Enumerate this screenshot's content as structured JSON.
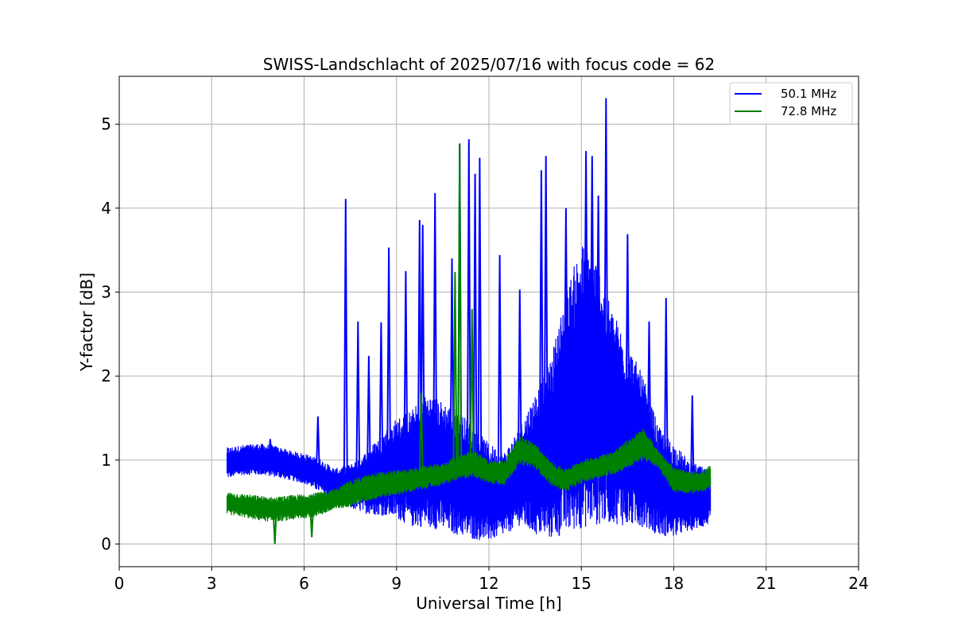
{
  "chart_data": {
    "type": "line",
    "title": "SWISS-Landschlacht of 2025/07/16 with focus code = 62",
    "xlabel": "Universal Time [h]",
    "ylabel": "Y-factor [dB]",
    "xlim": [
      0,
      24
    ],
    "ylim": [
      -0.27,
      5.57
    ],
    "x_ticks": [
      0,
      3,
      6,
      9,
      12,
      15,
      18,
      21,
      24
    ],
    "y_ticks": [
      0,
      1,
      2,
      3,
      4,
      5
    ],
    "grid": true,
    "legend_position": "top-right",
    "series": [
      {
        "name": "50.1 MHz",
        "color": "#0000ff",
        "x": [
          3.5,
          4.0,
          4.5,
          5.0,
          5.5,
          6.0,
          6.5,
          7.0,
          7.5,
          8.0,
          8.5,
          9.0,
          9.5,
          10.0,
          10.5,
          11.0,
          11.5,
          12.0,
          12.5,
          13.0,
          13.5,
          14.0,
          14.5,
          15.0,
          15.5,
          16.0,
          16.5,
          17.0,
          17.5,
          18.0,
          18.5,
          19.0,
          19.2
        ],
        "low": [
          0.78,
          0.82,
          0.82,
          0.8,
          0.76,
          0.72,
          0.62,
          0.52,
          0.42,
          0.36,
          0.34,
          0.3,
          0.2,
          0.2,
          0.15,
          0.1,
          0.05,
          0.03,
          0.1,
          0.22,
          0.1,
          0.05,
          0.1,
          0.18,
          0.22,
          0.25,
          0.2,
          0.2,
          0.1,
          0.08,
          0.15,
          0.2,
          0.25
        ],
        "high": [
          1.15,
          1.18,
          1.2,
          1.18,
          1.12,
          1.08,
          1.02,
          0.9,
          0.95,
          1.1,
          1.3,
          1.5,
          1.6,
          1.8,
          1.7,
          1.6,
          1.4,
          1.2,
          1.1,
          1.4,
          1.8,
          2.2,
          3.0,
          3.6,
          3.4,
          2.8,
          2.4,
          2.0,
          1.4,
          1.2,
          1.0,
          0.9,
          0.9
        ],
        "spikes": [
          [
            4.9,
            1.25
          ],
          [
            6.45,
            1.52
          ],
          [
            7.35,
            4.11
          ],
          [
            7.75,
            2.65
          ],
          [
            8.1,
            2.24
          ],
          [
            8.5,
            2.64
          ],
          [
            8.75,
            3.53
          ],
          [
            9.3,
            3.25
          ],
          [
            9.75,
            3.86
          ],
          [
            9.85,
            3.8
          ],
          [
            10.25,
            4.18
          ],
          [
            10.8,
            3.4
          ],
          [
            11.05,
            4.77
          ],
          [
            11.35,
            4.82
          ],
          [
            11.55,
            4.41
          ],
          [
            11.7,
            4.6
          ],
          [
            12.35,
            3.44
          ],
          [
            13.0,
            3.03
          ],
          [
            13.7,
            4.45
          ],
          [
            13.85,
            4.62
          ],
          [
            14.5,
            4.0
          ],
          [
            15.15,
            4.68
          ],
          [
            15.35,
            4.62
          ],
          [
            15.55,
            4.15
          ],
          [
            15.8,
            5.31
          ],
          [
            16.5,
            3.69
          ],
          [
            17.2,
            2.65
          ],
          [
            17.75,
            2.93
          ],
          [
            18.6,
            1.77
          ]
        ]
      },
      {
        "name": "72.8 MHz",
        "color": "#008000",
        "x": [
          3.5,
          4.0,
          4.5,
          5.0,
          5.5,
          6.0,
          6.5,
          7.0,
          7.5,
          8.0,
          8.5,
          9.0,
          9.5,
          10.0,
          10.5,
          11.0,
          11.5,
          12.0,
          12.5,
          13.0,
          13.5,
          14.0,
          14.5,
          15.0,
          15.5,
          16.0,
          16.5,
          17.0,
          17.5,
          18.0,
          18.5,
          19.0,
          19.2
        ],
        "low": [
          0.35,
          0.32,
          0.28,
          0.26,
          0.28,
          0.3,
          0.34,
          0.4,
          0.45,
          0.5,
          0.55,
          0.58,
          0.62,
          0.66,
          0.7,
          0.76,
          0.8,
          0.72,
          0.7,
          0.95,
          0.9,
          0.7,
          0.62,
          0.72,
          0.78,
          0.82,
          0.9,
          1.0,
          0.9,
          0.62,
          0.6,
          0.62,
          0.65
        ],
        "high": [
          0.62,
          0.6,
          0.58,
          0.56,
          0.58,
          0.6,
          0.62,
          0.66,
          0.76,
          0.82,
          0.86,
          0.88,
          0.9,
          0.94,
          0.96,
          1.06,
          1.12,
          1.0,
          1.0,
          1.3,
          1.2,
          0.98,
          0.9,
          1.0,
          1.05,
          1.1,
          1.24,
          1.38,
          1.12,
          0.92,
          0.86,
          0.88,
          0.95
        ],
        "spikes": [
          [
            5.05,
            0.0
          ],
          [
            6.25,
            0.08
          ],
          [
            9.8,
            1.8
          ],
          [
            10.9,
            3.24
          ],
          [
            11.05,
            4.77
          ],
          [
            11.45,
            2.8
          ]
        ]
      }
    ]
  }
}
